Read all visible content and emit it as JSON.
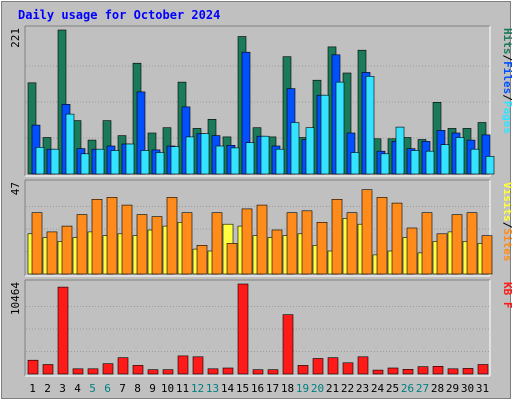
{
  "colors": {
    "background": "#c0c0c0",
    "plot_bg": "#c0c0c0",
    "title": "#0000ff",
    "axis_text": "#000000",
    "weekend_text": "#008080",
    "hits": "#1a7a5a",
    "files": "#0050ff",
    "pages": "#33e3ff",
    "visits": "#ffff40",
    "sites": "#ff8c1a",
    "kbytes": "#ff1a1a"
  },
  "chart_data": {
    "type": "bar",
    "title": "Daily usage for October 2024",
    "categories": [
      "1",
      "2",
      "3",
      "4",
      "5",
      "6",
      "7",
      "8",
      "9",
      "10",
      "11",
      "12",
      "13",
      "14",
      "15",
      "16",
      "17",
      "18",
      "19",
      "20",
      "21",
      "22",
      "23",
      "24",
      "25",
      "26",
      "27",
      "28",
      "29",
      "30",
      "31"
    ],
    "weekend_days": [
      "5",
      "6",
      "12",
      "13",
      "19",
      "20",
      "26",
      "27"
    ],
    "panels": [
      {
        "id": "top",
        "ymax_label": "221",
        "ymax": 221,
        "legend": [
          {
            "text": "Hits",
            "color_key": "hits"
          },
          {
            "text": "/",
            "color_key": "axis_text"
          },
          {
            "text": "Files",
            "color_key": "files"
          },
          {
            "text": "/",
            "color_key": "axis_text"
          },
          {
            "text": "Pages",
            "color_key": "pages"
          }
        ],
        "series": [
          {
            "name": "Hits",
            "color_key": "hits",
            "values": [
              140,
              56,
              221,
              82,
              52,
              82,
              59,
              170,
              63,
              71,
              141,
              70,
              84,
              57,
              211,
              71,
              57,
              180,
              56,
              144,
              195,
              155,
              190,
              54,
              54,
              56,
              53,
              110,
              70,
              70,
              79
            ]
          },
          {
            "name": "Files",
            "color_key": "files",
            "values": [
              75,
              38,
              107,
              39,
              38,
              43,
              46,
              126,
              37,
              43,
              103,
              62,
              59,
              44,
              187,
              58,
              43,
              131,
              53,
              121,
              183,
              63,
              156,
              35,
              50,
              39,
              50,
              67,
              63,
              52,
              60
            ]
          },
          {
            "name": "Pages",
            "color_key": "pages",
            "values": [
              41,
              38,
              92,
              31,
              38,
              36,
              46,
              36,
              33,
              42,
              57,
              62,
              43,
              40,
              48,
              58,
              38,
              79,
              71,
              121,
              141,
              33,
              150,
              31,
              72,
              36,
              35,
              45,
              56,
              38,
              27
            ]
          }
        ]
      },
      {
        "id": "mid",
        "ymax_label": "47",
        "ymax": 47,
        "legend": [
          {
            "text": "Visits",
            "color_key": "visits"
          },
          {
            "text": "/",
            "color_key": "axis_text"
          },
          {
            "text": "Sites",
            "color_key": "sites"
          }
        ],
        "series": [
          {
            "name": "Visits",
            "color_key": "visits",
            "values": [
              21,
              19,
              17,
              19,
              22,
              20,
              21,
              20,
              23,
              25,
              27,
              13,
              12,
              26,
              25,
              20,
              19,
              20,
              21,
              15,
              12,
              29,
              26,
              10,
              12,
              19,
              11,
              17,
              22,
              17,
              16
            ]
          },
          {
            "name": "Sites",
            "color_key": "sites",
            "values": [
              32,
              22,
              25,
              31,
              39,
              40,
              36,
              31,
              30,
              40,
              32,
              15,
              32,
              16,
              34,
              36,
              23,
              32,
              33,
              27,
              39,
              32,
              44,
              40,
              37,
              24,
              32,
              21,
              31,
              32,
              20
            ]
          }
        ]
      },
      {
        "id": "bot",
        "ymax_label": "10464",
        "ymax": 10464,
        "legend": [
          {
            "text": "KB F",
            "color_key": "kbytes"
          }
        ],
        "series": [
          {
            "name": "KB F",
            "color_key": "kbytes",
            "values": [
              1600,
              1100,
              10100,
              600,
              600,
              1200,
              1900,
              1000,
              500,
              500,
              2100,
              2000,
              600,
              700,
              10464,
              500,
              500,
              6900,
              1000,
              1800,
              1900,
              1300,
              2000,
              450,
              700,
              550,
              850,
              900,
              600,
              650,
              1100
            ]
          }
        ]
      }
    ]
  }
}
